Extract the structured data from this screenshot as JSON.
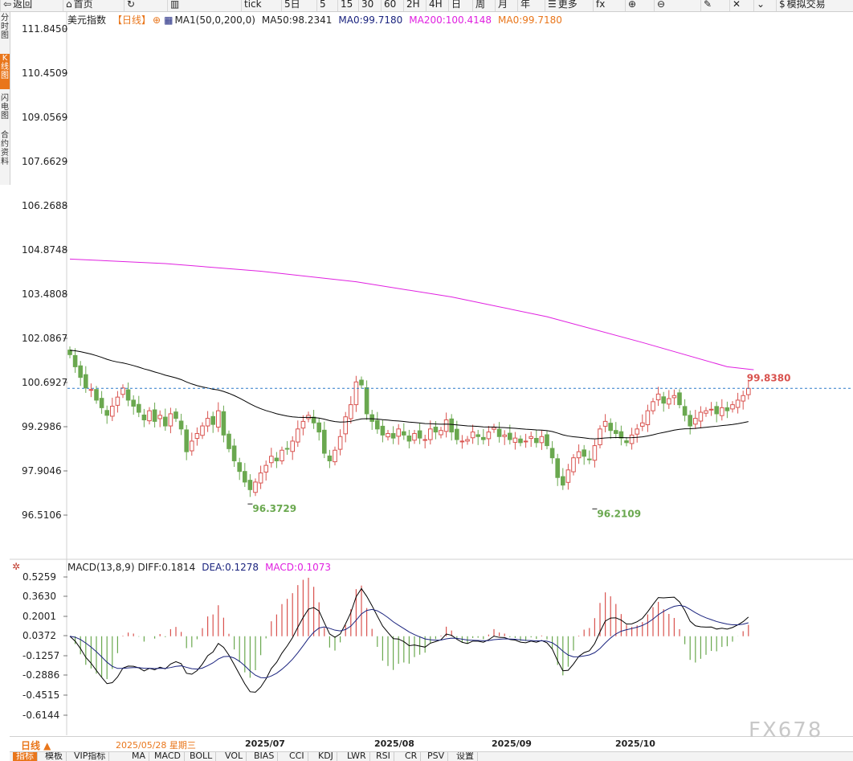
{
  "toolbar": {
    "items": [
      "返回",
      "首页",
      "",
      "",
      "tick",
      "5日",
      "5",
      "15",
      "30",
      "60",
      "2H",
      "4H",
      "日",
      "周",
      "月",
      "年",
      "更多",
      "fx",
      "",
      "",
      "",
      "",
      "",
      "模拟交易"
    ],
    "icons": [
      "back-icon",
      "home-icon",
      "refresh-icon",
      "bar-chart-icon",
      "",
      "",
      "",
      "",
      "",
      "",
      "",
      "",
      "",
      "",
      "",
      "",
      "menu-icon",
      "formula-icon",
      "zoom-icon",
      "zoom-out-icon",
      "draw-icon",
      "close-icon",
      "check-icon",
      "dollar-icon"
    ]
  },
  "sidebar": {
    "tabs": [
      "分时图",
      "K线图",
      "闪电图",
      "合约资料"
    ],
    "active": 1
  },
  "main_legend": {
    "title": "美元指数",
    "period": "【日线】",
    "ma_name": "MA1(50,0,200,0)",
    "ma50": "MA50:98.2341",
    "ma0a": "MA0:99.7180",
    "ma200": "MA200:100.4148",
    "ma0b": "MA0:99.7180"
  },
  "macd_legend": {
    "name": "MACD(13,8,9)",
    "diff": "DIFF:0.1814",
    "dea": "DEA:0.1278",
    "macd": "MACD:0.1073"
  },
  "price_axis": [
    "111.8450",
    "110.4509",
    "109.0569",
    "107.6629",
    "106.2688",
    "104.8748",
    "103.4808",
    "102.0867",
    "100.6927",
    "99.2986",
    "97.9046",
    "96.5106"
  ],
  "macd_axis": [
    "0.5259",
    "0.3630",
    "0.2001",
    "0.0372",
    "-0.1257",
    "-0.2886",
    "-0.4515",
    "-0.6144"
  ],
  "annotations": {
    "last_price": "99.8380",
    "low1": "96.3729",
    "low2": "96.2109"
  },
  "x_labels": [
    "2025/07",
    "2025/08",
    "2025/09",
    "2025/10"
  ],
  "period_button": "日线 ▲",
  "cursor_date": "2025/05/28 星期三",
  "bottom_tabs": [
    "指标",
    "模板",
    "VIP指标",
    "MA",
    "MACD",
    "BOLL",
    "VOL",
    "BIAS",
    "CCI",
    "KDJ",
    "LWR",
    "RSI",
    "CR",
    "PSV",
    "设置"
  ],
  "watermark": "FX678",
  "colors": {
    "up": "#d9534f",
    "down": "#6aa84f",
    "ma50": "#000000",
    "ma200": "#e020e0",
    "diff": "#000000",
    "dea": "#1a237e",
    "accent": "#e9761b"
  },
  "chart_data": {
    "type": "candlestick",
    "title": "美元指数 日线",
    "ylim": [
      95.9,
      112.0
    ],
    "x_ticks": [
      "2025/07",
      "2025/08",
      "2025/09",
      "2025/10"
    ],
    "x_tick_index": [
      34,
      60,
      84,
      109
    ],
    "last_price": 99.838,
    "annotations": [
      {
        "label": "96.3729",
        "index": 34,
        "value": 96.3729
      },
      {
        "label": "96.2109",
        "index": 99,
        "value": 96.2109
      }
    ],
    "candles_close": [
      100.95,
      100.55,
      100.2,
      99.85,
      99.8,
      99.45,
      99.2,
      98.95,
      99.25,
      99.55,
      99.85,
      99.45,
      99.25,
      99.05,
      98.8,
      99.1,
      98.75,
      98.95,
      98.6,
      99.0,
      98.85,
      98.5,
      97.75,
      98.1,
      98.35,
      98.6,
      98.85,
      98.65,
      99.1,
      98.3,
      97.85,
      97.45,
      97.1,
      96.75,
      96.5,
      96.75,
      97.05,
      97.3,
      97.6,
      97.45,
      97.8,
      97.85,
      98.1,
      98.5,
      98.75,
      98.95,
      98.7,
      98.4,
      97.7,
      97.45,
      97.8,
      98.25,
      98.9,
      99.3,
      100.05,
      99.95,
      99.0,
      98.75,
      98.5,
      98.3,
      98.35,
      98.2,
      98.5,
      98.3,
      98.1,
      98.35,
      98.2,
      98.15,
      98.5,
      98.4,
      98.45,
      98.8,
      98.4,
      98.15,
      98.1,
      98.15,
      98.4,
      98.25,
      98.15,
      98.4,
      98.55,
      98.25,
      98.3,
      98.15,
      98.2,
      98.05,
      98.1,
      98.25,
      98.05,
      98.25,
      97.95,
      97.55,
      96.9,
      96.65,
      97.15,
      97.55,
      97.75,
      97.6,
      97.5,
      97.95,
      98.5,
      98.75,
      98.45,
      98.35,
      98.2,
      98.05,
      98.3,
      98.5,
      98.7,
      99.1,
      99.4,
      99.65,
      99.35,
      99.5,
      99.6,
      99.3,
      98.95,
      98.6,
      98.85,
      99.05,
      99.1,
      99.15,
      99.0,
      99.2,
      99.1,
      99.3,
      99.45,
      99.6,
      99.838
    ],
    "ma50_start": 101.1,
    "ma200": [
      [
        0,
        104.1
      ],
      [
        18,
        103.95
      ],
      [
        36,
        103.7
      ],
      [
        54,
        103.35
      ],
      [
        72,
        102.85
      ],
      [
        90,
        102.2
      ],
      [
        108,
        101.35
      ],
      [
        124,
        100.55
      ],
      [
        129,
        100.45
      ]
    ],
    "macd_ylim": [
      -0.72,
      0.56
    ],
    "macd_diff_last": 0.1814,
    "macd_dea_last": 0.1278,
    "macd_hist_last": 0.1073
  }
}
